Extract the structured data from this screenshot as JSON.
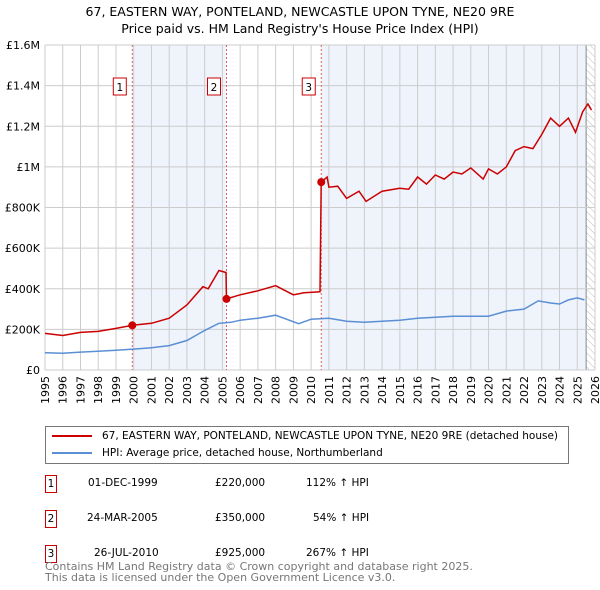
{
  "title": "67, EASTERN WAY, PONTELAND, NEWCASTLE UPON TYNE, NE20 9RE",
  "subtitle": "Price paid vs. HM Land Registry's House Price Index (HPI)",
  "colors": {
    "property": "#cc0000",
    "hpi": "#5b8fd4",
    "band": "#eef3fc",
    "grid": "#cccccc"
  },
  "chart_data": {
    "type": "line",
    "title": "67, EASTERN WAY, PONTELAND, NEWCASTLE UPON TYNE, NE20 9RE",
    "subtitle": "Price paid vs. HM Land Registry's House Price Index (HPI)",
    "xlim": [
      1995,
      2026
    ],
    "ylim": [
      0,
      1600000
    ],
    "x_ticks": [
      "1995",
      "1996",
      "1997",
      "1998",
      "1999",
      "2000",
      "2001",
      "2002",
      "2003",
      "2004",
      "2005",
      "2006",
      "2007",
      "2008",
      "2009",
      "2010",
      "2011",
      "2012",
      "2013",
      "2014",
      "2015",
      "2016",
      "2017",
      "2018",
      "2019",
      "2020",
      "2021",
      "2022",
      "2023",
      "2024",
      "2025",
      "2026"
    ],
    "y_ticks": [
      {
        "v": 0,
        "label": "£0"
      },
      {
        "v": 200000,
        "label": "£200K"
      },
      {
        "v": 400000,
        "label": "£400K"
      },
      {
        "v": 600000,
        "label": "£600K"
      },
      {
        "v": 800000,
        "label": "£800K"
      },
      {
        "v": 1000000,
        "label": "£1M"
      },
      {
        "v": 1200000,
        "label": "£1.2M"
      },
      {
        "v": 1400000,
        "label": "£1.4M"
      },
      {
        "v": 1600000,
        "label": "£1.6M"
      }
    ],
    "grid": true,
    "series": [
      {
        "name": "67, EASTERN WAY, PONTELAND, NEWCASTLE UPON TYNE, NE20 9RE (detached house)",
        "x": [
          1995,
          1996,
          1997,
          1998,
          1999,
          1999.92,
          2001,
          2002,
          2003,
          2003.9,
          2004.2,
          2004.8,
          2005.2,
          2005.23,
          2006,
          2007,
          2008,
          2009,
          2009.6,
          2010.5,
          2010.57,
          2010.9,
          2011,
          2011.5,
          2012,
          2012.7,
          2013.1,
          2014,
          2015,
          2015.5,
          2016,
          2016.5,
          2017,
          2017.5,
          2018,
          2018.5,
          2019,
          2019.7,
          2020,
          2020.5,
          2021,
          2021.5,
          2022,
          2022.5,
          2023,
          2023.5,
          2024,
          2024.5,
          2024.9,
          2025.3,
          2025.6,
          2025.8
        ],
        "y": [
          180000,
          170000,
          185000,
          190000,
          205000,
          220000,
          230000,
          255000,
          320000,
          410000,
          400000,
          490000,
          480000,
          350000,
          370000,
          390000,
          415000,
          370000,
          380000,
          385000,
          925000,
          950000,
          900000,
          905000,
          845000,
          880000,
          830000,
          880000,
          895000,
          890000,
          950000,
          915000,
          960000,
          940000,
          975000,
          965000,
          995000,
          940000,
          990000,
          965000,
          1000000,
          1080000,
          1100000,
          1090000,
          1160000,
          1240000,
          1200000,
          1240000,
          1170000,
          1270000,
          1310000,
          1280000
        ]
      },
      {
        "name": "HPI: Average price, detached house, Northumberland",
        "x": [
          1995,
          1996,
          1997,
          1998,
          1999,
          2000,
          2001,
          2002,
          2003,
          2004,
          2004.8,
          2005.5,
          2006,
          2007,
          2008,
          2009.3,
          2010,
          2011,
          2012,
          2013,
          2014,
          2015,
          2016,
          2017,
          2018,
          2019,
          2020,
          2021,
          2022,
          2022.8,
          2023.5,
          2024,
          2024.5,
          2025,
          2025.4
        ],
        "y": [
          85000,
          82000,
          88000,
          92000,
          97000,
          103000,
          110000,
          120000,
          145000,
          195000,
          230000,
          235000,
          245000,
          255000,
          270000,
          228000,
          250000,
          255000,
          240000,
          235000,
          240000,
          245000,
          255000,
          260000,
          265000,
          265000,
          265000,
          290000,
          300000,
          340000,
          330000,
          325000,
          345000,
          355000,
          345000
        ]
      }
    ],
    "sales": [
      {
        "id": "1",
        "x": 1999.92,
        "y": 220000,
        "date": "01-DEC-1999",
        "price": "£220,000",
        "hpi": "112% ↑ HPI"
      },
      {
        "id": "2",
        "x": 2005.23,
        "y": 350000,
        "date": "24-MAR-2005",
        "price": "£350,000",
        "hpi": "54% ↑ HPI"
      },
      {
        "id": "3",
        "x": 2010.57,
        "y": 925000,
        "date": "26-JUL-2010",
        "price": "£925,000",
        "hpi": "267% ↑ HPI"
      }
    ],
    "forecast_start": 2025.5,
    "legend_position": "below"
  },
  "footer": [
    "Contains HM Land Registry data © Crown copyright and database right 2025.",
    "This data is licensed under the Open Government Licence v3.0."
  ]
}
